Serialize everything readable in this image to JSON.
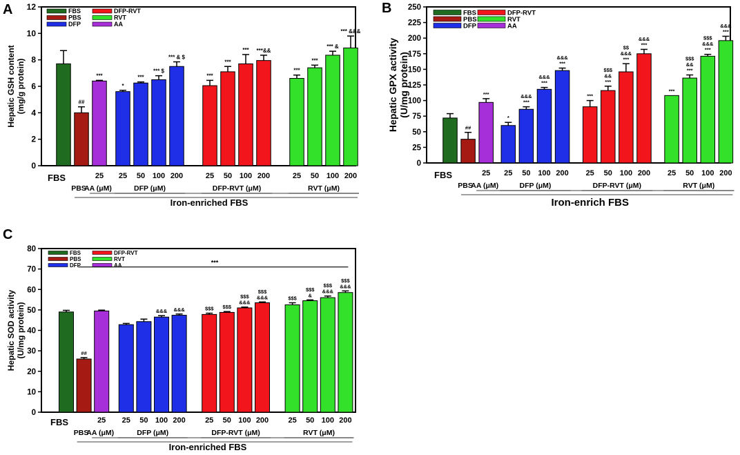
{
  "colors": {
    "FBS": "#1f6b1f",
    "PBS": "#a51a12",
    "AA": "#a72fd9",
    "DFP": "#1f2fe8",
    "DFP-RVT": "#f2151b",
    "RVT": "#33e02a"
  },
  "chart_data": [
    {
      "panel": "A",
      "type": "bar",
      "ylabel": "Hepatic GSH content (mg/g protein)",
      "ylabel_lines": [
        "Hepatic GSH content",
        "(mg/g protein)"
      ],
      "ylim": [
        0,
        12
      ],
      "yticks": [
        "0",
        "2",
        "4",
        "6",
        "8",
        "10",
        "12"
      ],
      "legend": [
        {
          "label": "FBS",
          "group": "FBS"
        },
        {
          "label": "DFP-RVT",
          "group": "DFP-RVT"
        },
        {
          "label": "PBS",
          "group": "PBS"
        },
        {
          "label": "RVT",
          "group": "RVT"
        },
        {
          "label": "DFP",
          "group": "DFP"
        },
        {
          "label": "AA",
          "group": "AA"
        }
      ],
      "bars": [
        {
          "group": "FBS",
          "label": "",
          "value": 7.7,
          "error": 1.0,
          "sig": ""
        },
        {
          "group": "PBS",
          "label": "",
          "value": 4.0,
          "error": 0.45,
          "sig": "##"
        },
        {
          "group": "AA",
          "label": "25",
          "value": 6.4,
          "error": 0.05,
          "sig": "***"
        },
        {
          "group": "DFP",
          "label": "25",
          "value": 5.6,
          "error": 0.1,
          "sig": "*"
        },
        {
          "group": "DFP",
          "label": "50",
          "value": 6.25,
          "error": 0.08,
          "sig": "***"
        },
        {
          "group": "DFP",
          "label": "100",
          "value": 6.5,
          "error": 0.3,
          "sig": "*** $"
        },
        {
          "group": "DFP",
          "label": "200",
          "value": 7.5,
          "error": 0.35,
          "sig": "*** & $"
        },
        {
          "group": "DFP-RVT",
          "label": "25",
          "value": 6.05,
          "error": 0.4,
          "sig": "***"
        },
        {
          "group": "DFP-RVT",
          "label": "50",
          "value": 7.1,
          "error": 0.4,
          "sig": "***"
        },
        {
          "group": "DFP-RVT",
          "label": "100",
          "value": 7.7,
          "error": 0.7,
          "sig": "***"
        },
        {
          "group": "DFP-RVT",
          "label": "200",
          "value": 7.95,
          "error": 0.4,
          "sig": "***&&"
        },
        {
          "group": "RVT",
          "label": "25",
          "value": 6.6,
          "error": 0.25,
          "sig": "***"
        },
        {
          "group": "RVT",
          "label": "50",
          "value": 7.4,
          "error": 0.2,
          "sig": "***"
        },
        {
          "group": "RVT",
          "label": "100",
          "value": 8.35,
          "error": 0.3,
          "sig": "*** &"
        },
        {
          "group": "RVT",
          "label": "200",
          "value": 8.9,
          "error": 0.9,
          "sig": "*** &&&"
        }
      ],
      "x_first_label": "FBS",
      "group_labels": [
        {
          "text": "PBS",
          "from": 1,
          "to": 1
        },
        {
          "text": "AA (μM)",
          "from": 2,
          "to": 2
        },
        {
          "text": "DFP (μM)",
          "from": 3,
          "to": 6
        },
        {
          "text": "DFP-RVT (μM)",
          "from": 7,
          "to": 10
        },
        {
          "text": "RVT (μM)",
          "from": 11,
          "to": 14
        }
      ],
      "xlabel": "Iron-enriched FBS"
    },
    {
      "panel": "B",
      "type": "bar",
      "ylabel": "Hepatic GPX activity (U/mg protein)",
      "ylabel_lines": [
        "Hepatic GPX activity",
        "(U/mg protein)"
      ],
      "ylim": [
        0,
        250
      ],
      "yticks": [
        "0",
        "25",
        "50",
        "75",
        "100",
        "125",
        "150",
        "175",
        "200",
        "225",
        "250"
      ],
      "legend": [
        {
          "label": "FBS",
          "group": "FBS"
        },
        {
          "label": "DFP-RVT",
          "group": "DFP-RVT"
        },
        {
          "label": "PBS",
          "group": "PBS"
        },
        {
          "label": "RVT",
          "group": "RVT"
        },
        {
          "label": "DFP",
          "group": "DFP"
        },
        {
          "label": "AA",
          "group": "AA"
        }
      ],
      "bars": [
        {
          "group": "FBS",
          "label": "",
          "value": 72,
          "error": 7,
          "sig": ""
        },
        {
          "group": "PBS",
          "label": "",
          "value": 38,
          "error": 11,
          "sig": "##"
        },
        {
          "group": "AA",
          "label": "25",
          "value": 97,
          "error": 6,
          "sig": "***"
        },
        {
          "group": "DFP",
          "label": "25",
          "value": 60,
          "error": 5,
          "sig": "*"
        },
        {
          "group": "DFP",
          "label": "50",
          "value": 86,
          "error": 4,
          "sig": "&&&|***"
        },
        {
          "group": "DFP",
          "label": "100",
          "value": 118,
          "error": 3,
          "sig": "&&&|***"
        },
        {
          "group": "DFP",
          "label": "200",
          "value": 148,
          "error": 4,
          "sig": "&&&|***"
        },
        {
          "group": "DFP-RVT",
          "label": "25",
          "value": 90,
          "error": 10,
          "sig": "***"
        },
        {
          "group": "DFP-RVT",
          "label": "50",
          "value": 116,
          "error": 7,
          "sig": "$$$|&&|***"
        },
        {
          "group": "DFP-RVT",
          "label": "100",
          "value": 146,
          "error": 13,
          "sig": "$$|&&&|***"
        },
        {
          "group": "DFP-RVT",
          "label": "200",
          "value": 175,
          "error": 7,
          "sig": "&&&|***"
        },
        {
          "group": "RVT",
          "label": "25",
          "value": 108,
          "error": 0,
          "sig": "***"
        },
        {
          "group": "RVT",
          "label": "50",
          "value": 136,
          "error": 5,
          "sig": "$$$|&&|***"
        },
        {
          "group": "RVT",
          "label": "100",
          "value": 171,
          "error": 3,
          "sig": "$$$|&&&|***"
        },
        {
          "group": "RVT",
          "label": "200",
          "value": 196,
          "error": 7,
          "sig": "&&&|***"
        }
      ],
      "x_first_label": "FBS",
      "group_labels": [
        {
          "text": "PBS",
          "from": 1,
          "to": 1
        },
        {
          "text": "AA (μM)",
          "from": 2,
          "to": 2
        },
        {
          "text": "DFP (μM)",
          "from": 3,
          "to": 6
        },
        {
          "text": "DFP-RVT (μM)",
          "from": 7,
          "to": 10
        },
        {
          "text": "RVT (μM)",
          "from": 11,
          "to": 14
        }
      ],
      "xlabel": "Iron-enrich FBS"
    },
    {
      "panel": "C",
      "type": "bar",
      "ylabel": "Hepatic SOD activity (U/mg protein)",
      "ylabel_lines": [
        "Hepatic SOD activity",
        "(U/mg protein)"
      ],
      "ylim": [
        0,
        80
      ],
      "yticks": [
        "0",
        "10",
        "20",
        "30",
        "40",
        "50",
        "60",
        "70",
        "80"
      ],
      "legend": [
        {
          "label": "FBS",
          "group": "FBS"
        },
        {
          "label": "DFP-RVT",
          "group": "DFP-RVT"
        },
        {
          "label": "PBS",
          "group": "PBS"
        },
        {
          "label": "RVT",
          "group": "RVT"
        },
        {
          "label": "DFP",
          "group": "DFP"
        },
        {
          "label": "AA",
          "group": "AA"
        }
      ],
      "overall_sig": "***",
      "bars": [
        {
          "group": "FBS",
          "label": "",
          "value": 49,
          "error": 0.8,
          "sig": ""
        },
        {
          "group": "PBS",
          "label": "",
          "value": 26,
          "error": 0.7,
          "sig": "##"
        },
        {
          "group": "AA",
          "label": "25",
          "value": 49.5,
          "error": 0.4,
          "sig": ""
        },
        {
          "group": "DFP",
          "label": "25",
          "value": 42.8,
          "error": 0.6,
          "sig": ""
        },
        {
          "group": "DFP",
          "label": "50",
          "value": 44.3,
          "error": 1.2,
          "sig": ""
        },
        {
          "group": "DFP",
          "label": "100",
          "value": 46.5,
          "error": 0.7,
          "sig": "&&&"
        },
        {
          "group": "DFP",
          "label": "200",
          "value": 47.4,
          "error": 0.6,
          "sig": "&&&"
        },
        {
          "group": "DFP-RVT",
          "label": "25",
          "value": 47.8,
          "error": 0.6,
          "sig": "$$$"
        },
        {
          "group": "DFP-RVT",
          "label": "50",
          "value": 48.8,
          "error": 0.4,
          "sig": "$$$"
        },
        {
          "group": "DFP-RVT",
          "label": "100",
          "value": 51,
          "error": 0.4,
          "sig": "$$$|&&&"
        },
        {
          "group": "DFP-RVT",
          "label": "200",
          "value": 53.5,
          "error": 0.4,
          "sig": "$$$|&&&"
        },
        {
          "group": "RVT",
          "label": "25",
          "value": 52.5,
          "error": 1.0,
          "sig": "$$$"
        },
        {
          "group": "RVT",
          "label": "50",
          "value": 54.5,
          "error": 0.4,
          "sig": "$$$|&"
        },
        {
          "group": "RVT",
          "label": "100",
          "value": 56,
          "error": 0.8,
          "sig": "$$$|&&&"
        },
        {
          "group": "RVT",
          "label": "200",
          "value": 58.5,
          "error": 0.8,
          "sig": "$$$|&&&"
        }
      ],
      "x_first_label": "FBS",
      "group_labels": [
        {
          "text": "PBS",
          "from": 1,
          "to": 1
        },
        {
          "text": "AA (μM)",
          "from": 2,
          "to": 2
        },
        {
          "text": "DFP (μM)",
          "from": 3,
          "to": 6
        },
        {
          "text": "DFP-RVT (μM)",
          "from": 7,
          "to": 10
        },
        {
          "text": "RVT (μM)",
          "from": 11,
          "to": 14
        }
      ],
      "xlabel": "Iron-enriched FBS"
    }
  ]
}
